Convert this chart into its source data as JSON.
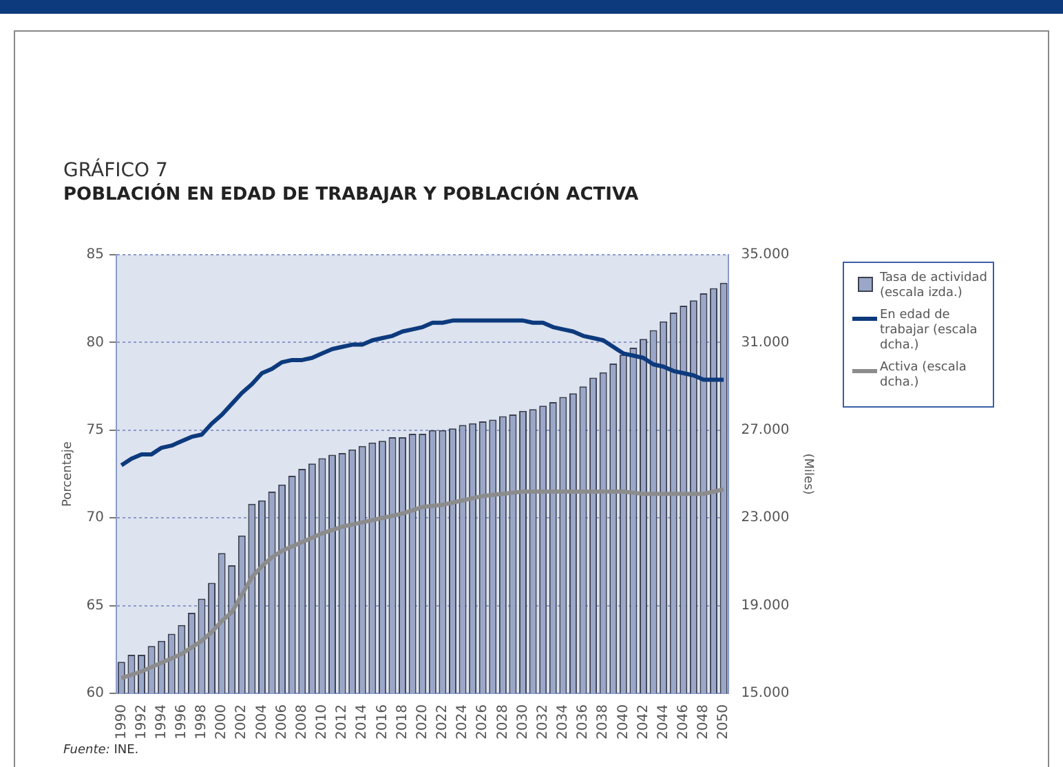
{
  "chart_data": {
    "type": "bar",
    "title": "GRÁFICO 7",
    "subtitle": "POBLACIÓN EN EDAD DE TRABAJAR Y POBLACIÓN ACTIVA",
    "ylabel": "Porcentaje",
    "y2label": "(Miles)",
    "categories": [
      "1990",
      null,
      "1992",
      null,
      "1994",
      null,
      "1996",
      null,
      "1998",
      null,
      "2000",
      null,
      "2002",
      null,
      "2004",
      null,
      "2006",
      null,
      "2008",
      null,
      "2010",
      null,
      "2012",
      null,
      "2014",
      null,
      "2016",
      null,
      "2018",
      null,
      "2020",
      null,
      "2022",
      null,
      "2024",
      null,
      "2026",
      null,
      "2028",
      null,
      "2030",
      null,
      "2032",
      null,
      "2034",
      null,
      "2036",
      null,
      "2038",
      null,
      "2040",
      null,
      "2042",
      null,
      "2044",
      null,
      "2046",
      null,
      "2048",
      null,
      "2050"
    ],
    "series": [
      {
        "name": "Tasa de actividad (escala izda.)",
        "color": "#9ba7c9",
        "values": [
          61.8,
          62.2,
          62.2,
          62.7,
          63.0,
          63.4,
          63.9,
          64.6,
          65.4,
          66.3,
          68.0,
          67.3,
          69.0,
          70.8,
          71.0,
          71.5,
          71.9,
          72.4,
          72.8,
          73.1,
          73.4,
          73.6,
          73.7,
          73.9,
          74.1,
          74.3,
          74.4,
          74.6,
          74.6,
          74.8,
          74.8,
          75.0,
          75.0,
          75.1,
          75.3,
          75.4,
          75.5,
          75.6,
          75.8,
          75.9,
          76.1,
          76.2,
          76.4,
          76.6,
          76.9,
          77.1,
          77.5,
          78.0,
          78.3,
          78.8,
          79.3,
          79.7,
          80.2,
          80.7,
          81.2,
          81.7,
          82.1,
          82.4,
          82.8,
          83.1,
          83.4
        ]
      },
      {
        "name": "En edad de trabajar (escala dcha.)",
        "type": "line",
        "axis": "y2",
        "color": "#0d3a7d",
        "values": [
          25400,
          25700,
          25900,
          25900,
          26200,
          26300,
          26500,
          26700,
          26800,
          27300,
          27700,
          28200,
          28700,
          29100,
          29600,
          29800,
          30100,
          30200,
          30200,
          30300,
          30500,
          30700,
          30800,
          30900,
          30900,
          31100,
          31200,
          31300,
          31500,
          31600,
          31700,
          31900,
          31900,
          32000,
          32000,
          32000,
          32000,
          32000,
          32000,
          32000,
          32000,
          31900,
          31900,
          31700,
          31600,
          31500,
          31300,
          31200,
          31100,
          30800,
          30500,
          30400,
          30300,
          30000,
          29900,
          29700,
          29600,
          29500,
          29300,
          29300,
          29300
        ]
      },
      {
        "name": "Activa (escala dcha.)",
        "type": "line",
        "axis": "y2",
        "color": "#8c8c8c",
        "values": [
          15700,
          15850,
          16000,
          16200,
          16400,
          16600,
          16800,
          17100,
          17400,
          17800,
          18300,
          18700,
          19500,
          20300,
          20800,
          21200,
          21500,
          21700,
          21900,
          22100,
          22300,
          22450,
          22600,
          22700,
          22800,
          22900,
          23000,
          23100,
          23200,
          23350,
          23500,
          23550,
          23600,
          23700,
          23800,
          23900,
          24000,
          24050,
          24100,
          24150,
          24200,
          24200,
          24200,
          24200,
          24200,
          24200,
          24200,
          24200,
          24200,
          24200,
          24200,
          24150,
          24100,
          24100,
          24100,
          24100,
          24100,
          24100,
          24100,
          24200,
          24300
        ]
      }
    ],
    "ylim": [
      60,
      85
    ],
    "yticks": [
      60,
      65,
      70,
      75,
      80,
      85
    ],
    "y2lim": [
      15000,
      35000
    ],
    "y2ticks": [
      {
        "value": 15000,
        "label": "15.000"
      },
      {
        "value": 19000,
        "label": "19.000"
      },
      {
        "value": 23000,
        "label": "23.000"
      },
      {
        "value": 27000,
        "label": "27.000"
      },
      {
        "value": 31000,
        "label": "31.000"
      },
      {
        "value": 35000,
        "label": "35.000"
      }
    ],
    "grid": "y",
    "legend": "right",
    "marker": "none",
    "line_style": "solid",
    "annotations": [
      "Fuente: INE."
    ]
  }
}
